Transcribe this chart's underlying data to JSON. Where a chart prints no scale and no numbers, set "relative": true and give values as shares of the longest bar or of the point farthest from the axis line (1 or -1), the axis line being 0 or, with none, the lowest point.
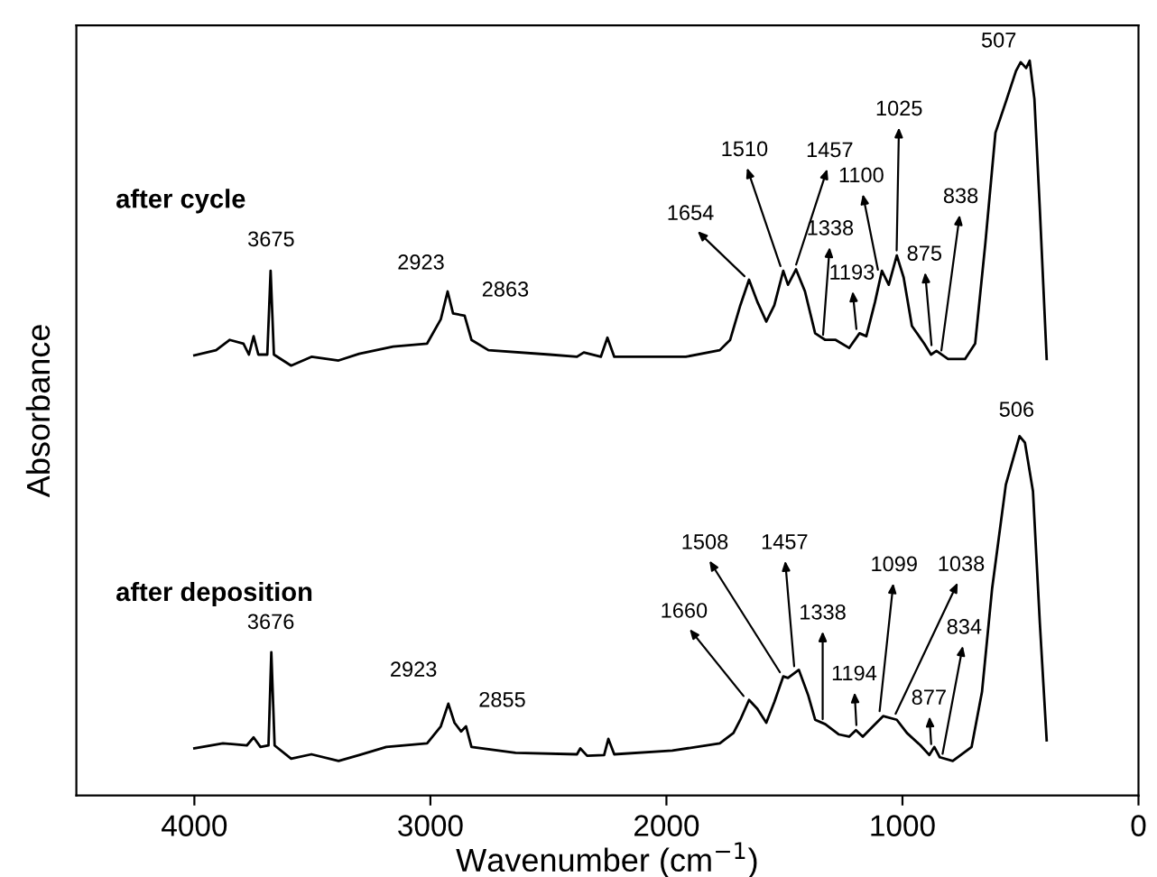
{
  "chart_data": {
    "type": "line",
    "relative": true,
    "xlabel": "Wavenumber (cm$^{−1}$)",
    "ylabel": "Absorbance",
    "xlim": [
      4500,
      0
    ],
    "xticks": [
      4000,
      3000,
      2000,
      1000,
      0
    ],
    "grid": false,
    "legend": false,
    "tick_labels": "x",
    "marker": "none",
    "line_style": "solid",
    "series": [
      {
        "name": "after cycle",
        "color": "#000000",
        "x": [
          4000,
          3908,
          3850,
          3792,
          3769,
          3749,
          3729,
          3691,
          3677,
          3663,
          3590,
          3504,
          3389,
          3302,
          3158,
          3014,
          2956,
          2927,
          2904,
          2855,
          2826,
          2754,
          2494,
          2379,
          2350,
          2278,
          2250,
          2221,
          1918,
          1774,
          1730,
          1687,
          1650,
          1615,
          1577,
          1543,
          1505,
          1485,
          1451,
          1413,
          1370,
          1327,
          1283,
          1226,
          1182,
          1153,
          1116,
          1087,
          1058,
          1024,
          995,
          960,
          908,
          879,
          856,
          807,
          735,
          692,
          649,
          606,
          562,
          519,
          499,
          476,
          461,
          441,
          418,
          389
        ],
        "values": [
          0.599,
          0.606,
          0.62,
          0.615,
          0.6,
          0.625,
          0.6,
          0.6,
          0.714,
          0.6,
          0.585,
          0.597,
          0.592,
          0.601,
          0.611,
          0.615,
          0.648,
          0.686,
          0.656,
          0.653,
          0.62,
          0.606,
          0.6,
          0.597,
          0.603,
          0.597,
          0.623,
          0.597,
          0.597,
          0.606,
          0.62,
          0.667,
          0.702,
          0.672,
          0.645,
          0.667,
          0.714,
          0.695,
          0.716,
          0.686,
          0.629,
          0.62,
          0.62,
          0.609,
          0.629,
          0.625,
          0.672,
          0.714,
          0.695,
          0.735,
          0.705,
          0.639,
          0.615,
          0.6,
          0.605,
          0.594,
          0.594,
          0.615,
          0.751,
          0.902,
          0.944,
          0.986,
          0.998,
          0.99,
          1.0,
          0.948,
          0.798,
          0.594
        ]
      },
      {
        "name": "after deposition",
        "color": "#000000",
        "x": [
          4000,
          3879,
          3778,
          3749,
          3720,
          3686,
          3674,
          3660,
          3590,
          3504,
          3389,
          3302,
          3187,
          3014,
          2956,
          2924,
          2898,
          2870,
          2849,
          2826,
          2639,
          2379,
          2365,
          2336,
          2264,
          2246,
          2221,
          1975,
          1774,
          1716,
          1687,
          1650,
          1615,
          1577,
          1543,
          1505,
          1485,
          1439,
          1399,
          1370,
          1327,
          1269,
          1226,
          1197,
          1168,
          1125,
          1082,
          1024,
          981,
          923,
          886,
          865,
          842,
          787,
          707,
          663,
          620,
          562,
          504,
          481,
          447,
          418,
          389
        ],
        "values": [
          0.064,
          0.071,
          0.068,
          0.079,
          0.066,
          0.068,
          0.195,
          0.068,
          0.05,
          0.056,
          0.047,
          0.055,
          0.066,
          0.071,
          0.094,
          0.125,
          0.099,
          0.087,
          0.094,
          0.066,
          0.058,
          0.056,
          0.064,
          0.054,
          0.055,
          0.077,
          0.056,
          0.061,
          0.071,
          0.085,
          0.103,
          0.13,
          0.118,
          0.099,
          0.127,
          0.162,
          0.16,
          0.171,
          0.136,
          0.103,
          0.097,
          0.083,
          0.08,
          0.089,
          0.08,
          0.094,
          0.108,
          0.103,
          0.085,
          0.068,
          0.055,
          0.066,
          0.052,
          0.047,
          0.066,
          0.141,
          0.282,
          0.423,
          0.489,
          0.48,
          0.414,
          0.235,
          0.075
        ]
      }
    ],
    "annotations": [
      {
        "text": "3675",
        "x": 3675,
        "y": 0.714
      },
      {
        "text": "2923",
        "x": 2923,
        "y": 0.686
      },
      {
        "text": "2863",
        "x": 2863,
        "y": 0.656
      },
      {
        "text": "1654",
        "x": 1654,
        "y": 0.702
      },
      {
        "text": "1510",
        "x": 1510,
        "y": 0.714
      },
      {
        "text": "1457",
        "x": 1457,
        "y": 0.716
      },
      {
        "text": "1338",
        "x": 1338,
        "y": 0.62
      },
      {
        "text": "1193",
        "x": 1193,
        "y": 0.628
      },
      {
        "text": "1100",
        "x": 1100,
        "y": 0.709
      },
      {
        "text": "1025",
        "x": 1025,
        "y": 0.735
      },
      {
        "text": "875",
        "x": 875,
        "y": 0.606
      },
      {
        "text": "838",
        "x": 838,
        "y": 0.599
      },
      {
        "text": "507",
        "x": 507,
        "y": 0.995
      },
      {
        "text": "3676",
        "x": 3676,
        "y": 0.195
      },
      {
        "text": "2923",
        "x": 2923,
        "y": 0.125
      },
      {
        "text": "2855",
        "x": 2855,
        "y": 0.094
      },
      {
        "text": "1660",
        "x": 1660,
        "y": 0.13
      },
      {
        "text": "1508",
        "x": 1508,
        "y": 0.162
      },
      {
        "text": "1457",
        "x": 1457,
        "y": 0.169
      },
      {
        "text": "1338",
        "x": 1338,
        "y": 0.097
      },
      {
        "text": "1194",
        "x": 1194,
        "y": 0.089
      },
      {
        "text": "1099",
        "x": 1099,
        "y": 0.108
      },
      {
        "text": "1038",
        "x": 1038,
        "y": 0.105
      },
      {
        "text": "877",
        "x": 877,
        "y": 0.063
      },
      {
        "text": "834",
        "x": 834,
        "y": 0.05
      },
      {
        "text": "506",
        "x": 506,
        "y": 0.489
      }
    ]
  }
}
